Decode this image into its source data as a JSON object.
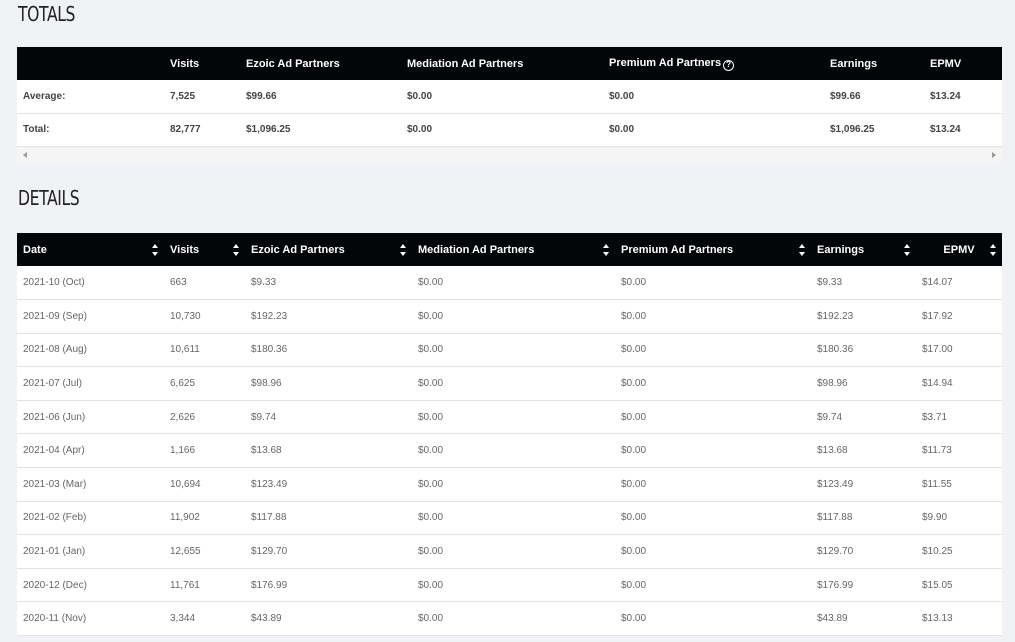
{
  "totals": {
    "title": "TOTALS",
    "headers": [
      "",
      "Visits",
      "Ezoic Ad Partners",
      "Mediation Ad Partners",
      "Premium Ad Partners",
      "Earnings",
      "EPMV"
    ],
    "rows": [
      [
        "Average:",
        "7,525",
        "$99.66",
        "$0.00",
        "$0.00",
        "$99.66",
        "$13.24"
      ],
      [
        "Total:",
        "82,777",
        "$1,096.25",
        "$0.00",
        "$0.00",
        "$1,096.25",
        "$13.24"
      ]
    ]
  },
  "details": {
    "title": "DETAILS",
    "headers": [
      "Date",
      "Visits",
      "Ezoic Ad Partners",
      "Mediation Ad Partners",
      "Premium Ad Partners",
      "Earnings",
      "EPMV"
    ],
    "rows": [
      [
        "2021-10 (Oct)",
        "663",
        "$9.33",
        "$0.00",
        "$0.00",
        "$9.33",
        "$14.07"
      ],
      [
        "2021-09 (Sep)",
        "10,730",
        "$192.23",
        "$0.00",
        "$0.00",
        "$192.23",
        "$17.92"
      ],
      [
        "2021-08 (Aug)",
        "10,611",
        "$180.36",
        "$0.00",
        "$0.00",
        "$180.36",
        "$17.00"
      ],
      [
        "2021-07 (Jul)",
        "6,625",
        "$98.96",
        "$0.00",
        "$0.00",
        "$98.96",
        "$14.94"
      ],
      [
        "2021-06 (Jun)",
        "2,626",
        "$9.74",
        "$0.00",
        "$0.00",
        "$9.74",
        "$3.71"
      ],
      [
        "2021-04 (Apr)",
        "1,166",
        "$13.68",
        "$0.00",
        "$0.00",
        "$13.68",
        "$11.73"
      ],
      [
        "2021-03 (Mar)",
        "10,694",
        "$123.49",
        "$0.00",
        "$0.00",
        "$123.49",
        "$11.55"
      ],
      [
        "2021-02 (Feb)",
        "11,902",
        "$117.88",
        "$0.00",
        "$0.00",
        "$117.88",
        "$9.90"
      ],
      [
        "2021-01 (Jan)",
        "12,655",
        "$129.70",
        "$0.00",
        "$0.00",
        "$129.70",
        "$10.25"
      ],
      [
        "2020-12 (Dec)",
        "11,761",
        "$176.99",
        "$0.00",
        "$0.00",
        "$176.99",
        "$15.05"
      ],
      [
        "2020-11 (Nov)",
        "3,344",
        "$43.89",
        "$0.00",
        "$0.00",
        "$43.89",
        "$13.13"
      ]
    ]
  },
  "icons": {
    "help": "question-circle-icon",
    "sort": "sort-icon"
  }
}
